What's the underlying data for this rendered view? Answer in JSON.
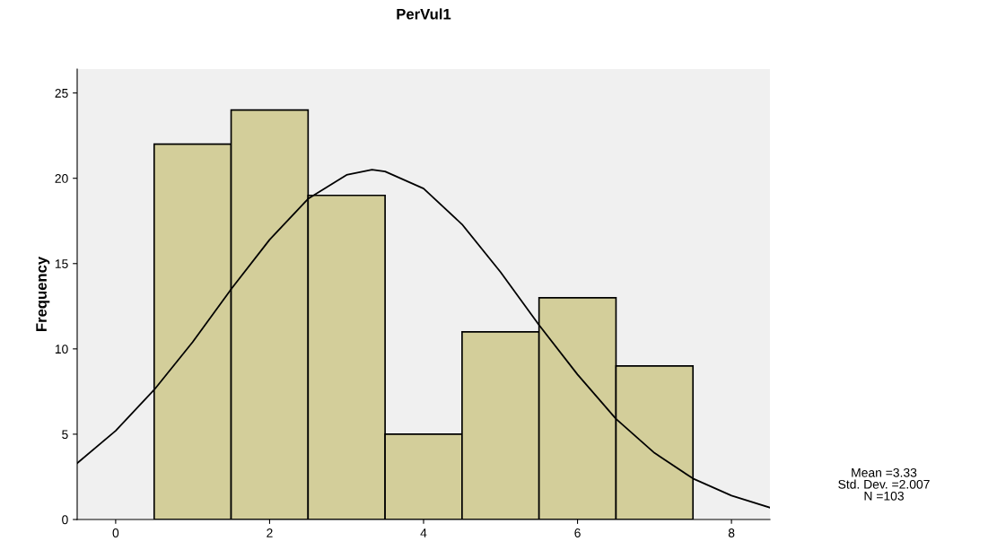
{
  "chart_data": {
    "type": "histogram",
    "title": "PerVul1",
    "ylabel": "Frequency",
    "xlim": [
      -0.5,
      8.5
    ],
    "ylim": [
      0,
      26.4
    ],
    "xticks": [
      0,
      2,
      4,
      6,
      8
    ],
    "yticks": [
      0,
      5,
      10,
      15,
      20,
      25
    ],
    "grid": false,
    "legend": false,
    "series": [
      {
        "type": "histogram",
        "bins": [
          0.5,
          1.5,
          2.5,
          3.5,
          4.5,
          5.5,
          6.5,
          7.5
        ],
        "values": [
          22,
          24,
          19,
          5,
          11,
          13,
          9
        ],
        "color": "#d3ce9a"
      },
      {
        "type": "line",
        "color": "#000000",
        "x": [
          -0.5,
          0,
          0.5,
          1,
          1.5,
          2,
          2.5,
          3,
          3.33,
          3.5,
          4,
          4.5,
          5,
          5.5,
          6,
          6.5,
          7,
          7.5,
          8,
          8.5
        ],
        "values": [
          3.3,
          5.2,
          7.6,
          10.4,
          13.5,
          16.4,
          18.8,
          20.2,
          20.5,
          20.4,
          19.4,
          17.3,
          14.5,
          11.4,
          8.5,
          5.9,
          3.9,
          2.4,
          1.4,
          0.7
        ]
      }
    ],
    "annotations": [
      "Mean =3.33",
      "Std. Dev. =2.007",
      "N =103"
    ]
  }
}
